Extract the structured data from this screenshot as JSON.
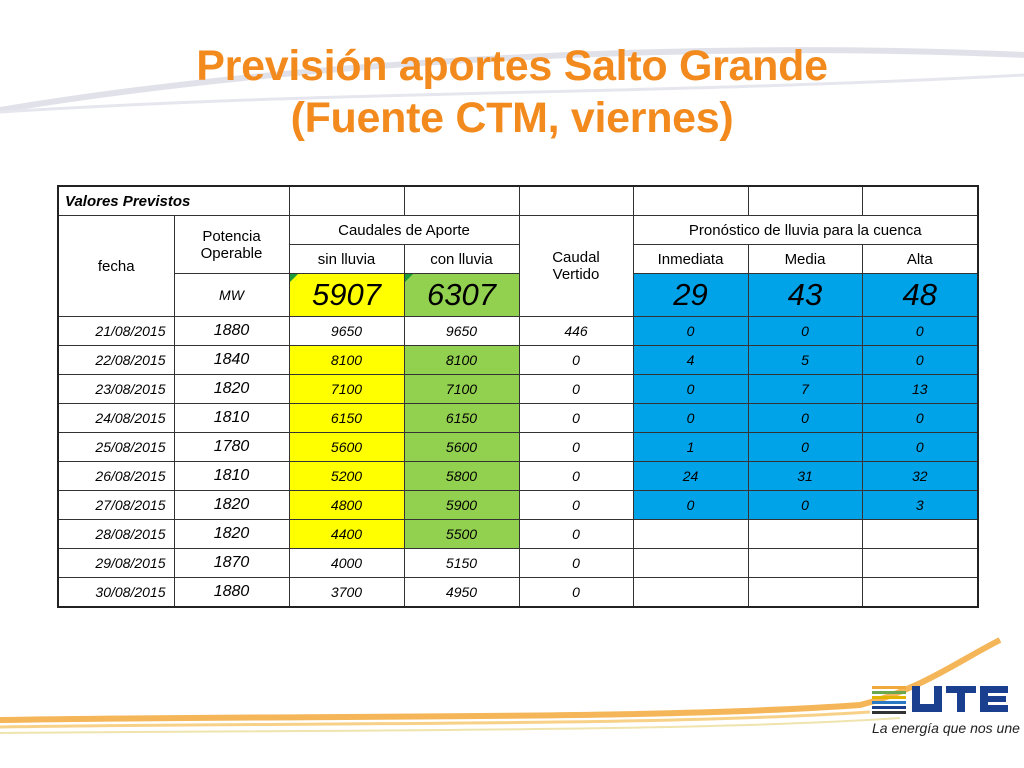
{
  "title": {
    "line1": "Previsión aportes Salto Grande",
    "line2": "(Fuente CTM, viernes)"
  },
  "table": {
    "section_label": "Valores Previstos",
    "col_fecha": "fecha",
    "col_potencia_1": "Potencia",
    "col_potencia_2": "Operable",
    "col_caudales": "Caudales de Aporte",
    "col_sin_lluvia": "sin lluvia",
    "col_con_lluvia": "con lluvia",
    "col_caudal_1": "Caudal",
    "col_caudal_2": "Vertido",
    "col_pronostico": "Pronóstico de lluvia para la cuenca",
    "col_inmediata": "Inmediata",
    "col_media": "Media",
    "col_alta": "Alta",
    "unit": "MW",
    "totals": {
      "sin": "5907",
      "con": "6307",
      "inm": "29",
      "med": "43",
      "alt": "48"
    },
    "rows": [
      {
        "fecha": "21/08/2015",
        "pot": "1880",
        "sin": "9650",
        "con": "9650",
        "ver": "446",
        "inm": "0",
        "med": "0",
        "alt": "0"
      },
      {
        "fecha": "22/08/2015",
        "pot": "1840",
        "sin": "8100",
        "con": "8100",
        "ver": "0",
        "inm": "4",
        "med": "5",
        "alt": "0"
      },
      {
        "fecha": "23/08/2015",
        "pot": "1820",
        "sin": "7100",
        "con": "7100",
        "ver": "0",
        "inm": "0",
        "med": "7",
        "alt": "13"
      },
      {
        "fecha": "24/08/2015",
        "pot": "1810",
        "sin": "6150",
        "con": "6150",
        "ver": "0",
        "inm": "0",
        "med": "0",
        "alt": "0"
      },
      {
        "fecha": "25/08/2015",
        "pot": "1780",
        "sin": "5600",
        "con": "5600",
        "ver": "0",
        "inm": "1",
        "med": "0",
        "alt": "0"
      },
      {
        "fecha": "26/08/2015",
        "pot": "1810",
        "sin": "5200",
        "con": "5800",
        "ver": "0",
        "inm": "24",
        "med": "31",
        "alt": "32"
      },
      {
        "fecha": "27/08/2015",
        "pot": "1820",
        "sin": "4800",
        "con": "5900",
        "ver": "0",
        "inm": "0",
        "med": "0",
        "alt": "3"
      },
      {
        "fecha": "28/08/2015",
        "pot": "1820",
        "sin": "4400",
        "con": "5500",
        "ver": "0",
        "inm": "",
        "med": "",
        "alt": ""
      },
      {
        "fecha": "29/08/2015",
        "pot": "1870",
        "sin": "4000",
        "con": "5150",
        "ver": "0",
        "inm": "",
        "med": "",
        "alt": ""
      },
      {
        "fecha": "30/08/2015",
        "pot": "1880",
        "sin": "3700",
        "con": "4950",
        "ver": "0",
        "inm": "",
        "med": "",
        "alt": ""
      }
    ]
  },
  "footer": {
    "logo_text": "UTE",
    "tagline": "La energía que nos une"
  },
  "colors": {
    "title": "#f28a1e",
    "yellow": "#ffff00",
    "green": "#92d050",
    "blue": "#00a2e8"
  }
}
